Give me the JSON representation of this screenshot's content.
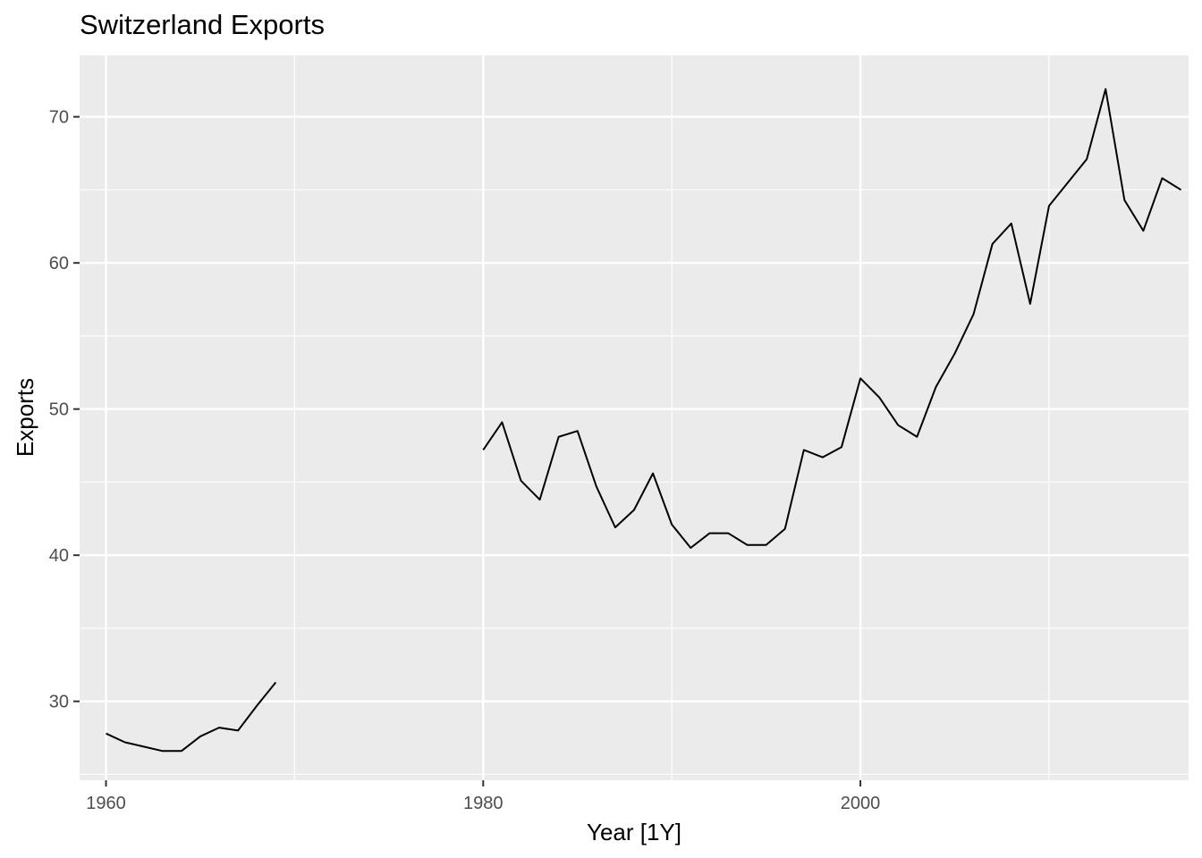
{
  "chart_data": {
    "type": "line",
    "title": "Switzerland Exports",
    "xlabel": "Year [1Y]",
    "ylabel": "Exports",
    "xlim": [
      1958.6,
      2017.4
    ],
    "ylim": [
      24.6,
      74.2
    ],
    "x_ticks": [
      1960,
      1980,
      2000
    ],
    "y_ticks": [
      30,
      40,
      50,
      60,
      70
    ],
    "grid": true,
    "colors": {
      "panel": "#ebebeb",
      "grid": "#ffffff",
      "line": "#000000",
      "tick_text": "#4d4d4d"
    },
    "series": [
      {
        "x": [
          1960,
          1961,
          1962,
          1963,
          1964,
          1965,
          1966,
          1967,
          1968,
          1969,
          1970,
          1971,
          1972,
          1973,
          1974,
          1975,
          1976,
          1977,
          1978,
          1979,
          1980,
          1981,
          1982,
          1983,
          1984,
          1985,
          1986,
          1987,
          1988,
          1989,
          1990,
          1991,
          1992,
          1993,
          1994,
          1995,
          1996,
          1997,
          1998,
          1999,
          2000,
          2001,
          2002,
          2003,
          2004,
          2005,
          2006,
          2007,
          2008,
          2009,
          2010,
          2011,
          2012,
          2013,
          2014,
          2015,
          2016,
          2017
        ],
        "values": [
          27.8,
          27.2,
          26.9,
          26.6,
          26.6,
          27.6,
          28.2,
          28.0,
          29.7,
          31.3,
          null,
          null,
          null,
          null,
          null,
          null,
          null,
          null,
          null,
          null,
          47.2,
          49.1,
          45.1,
          43.8,
          48.1,
          48.5,
          44.7,
          41.9,
          43.1,
          45.6,
          42.1,
          40.5,
          41.5,
          41.5,
          40.7,
          40.7,
          41.8,
          47.2,
          46.7,
          47.4,
          52.1,
          50.8,
          48.9,
          48.1,
          51.5,
          53.8,
          56.5,
          61.3,
          62.7,
          57.2,
          63.9,
          65.5,
          67.1,
          71.9,
          64.3,
          62.2,
          65.8,
          65.0
        ]
      }
    ]
  }
}
